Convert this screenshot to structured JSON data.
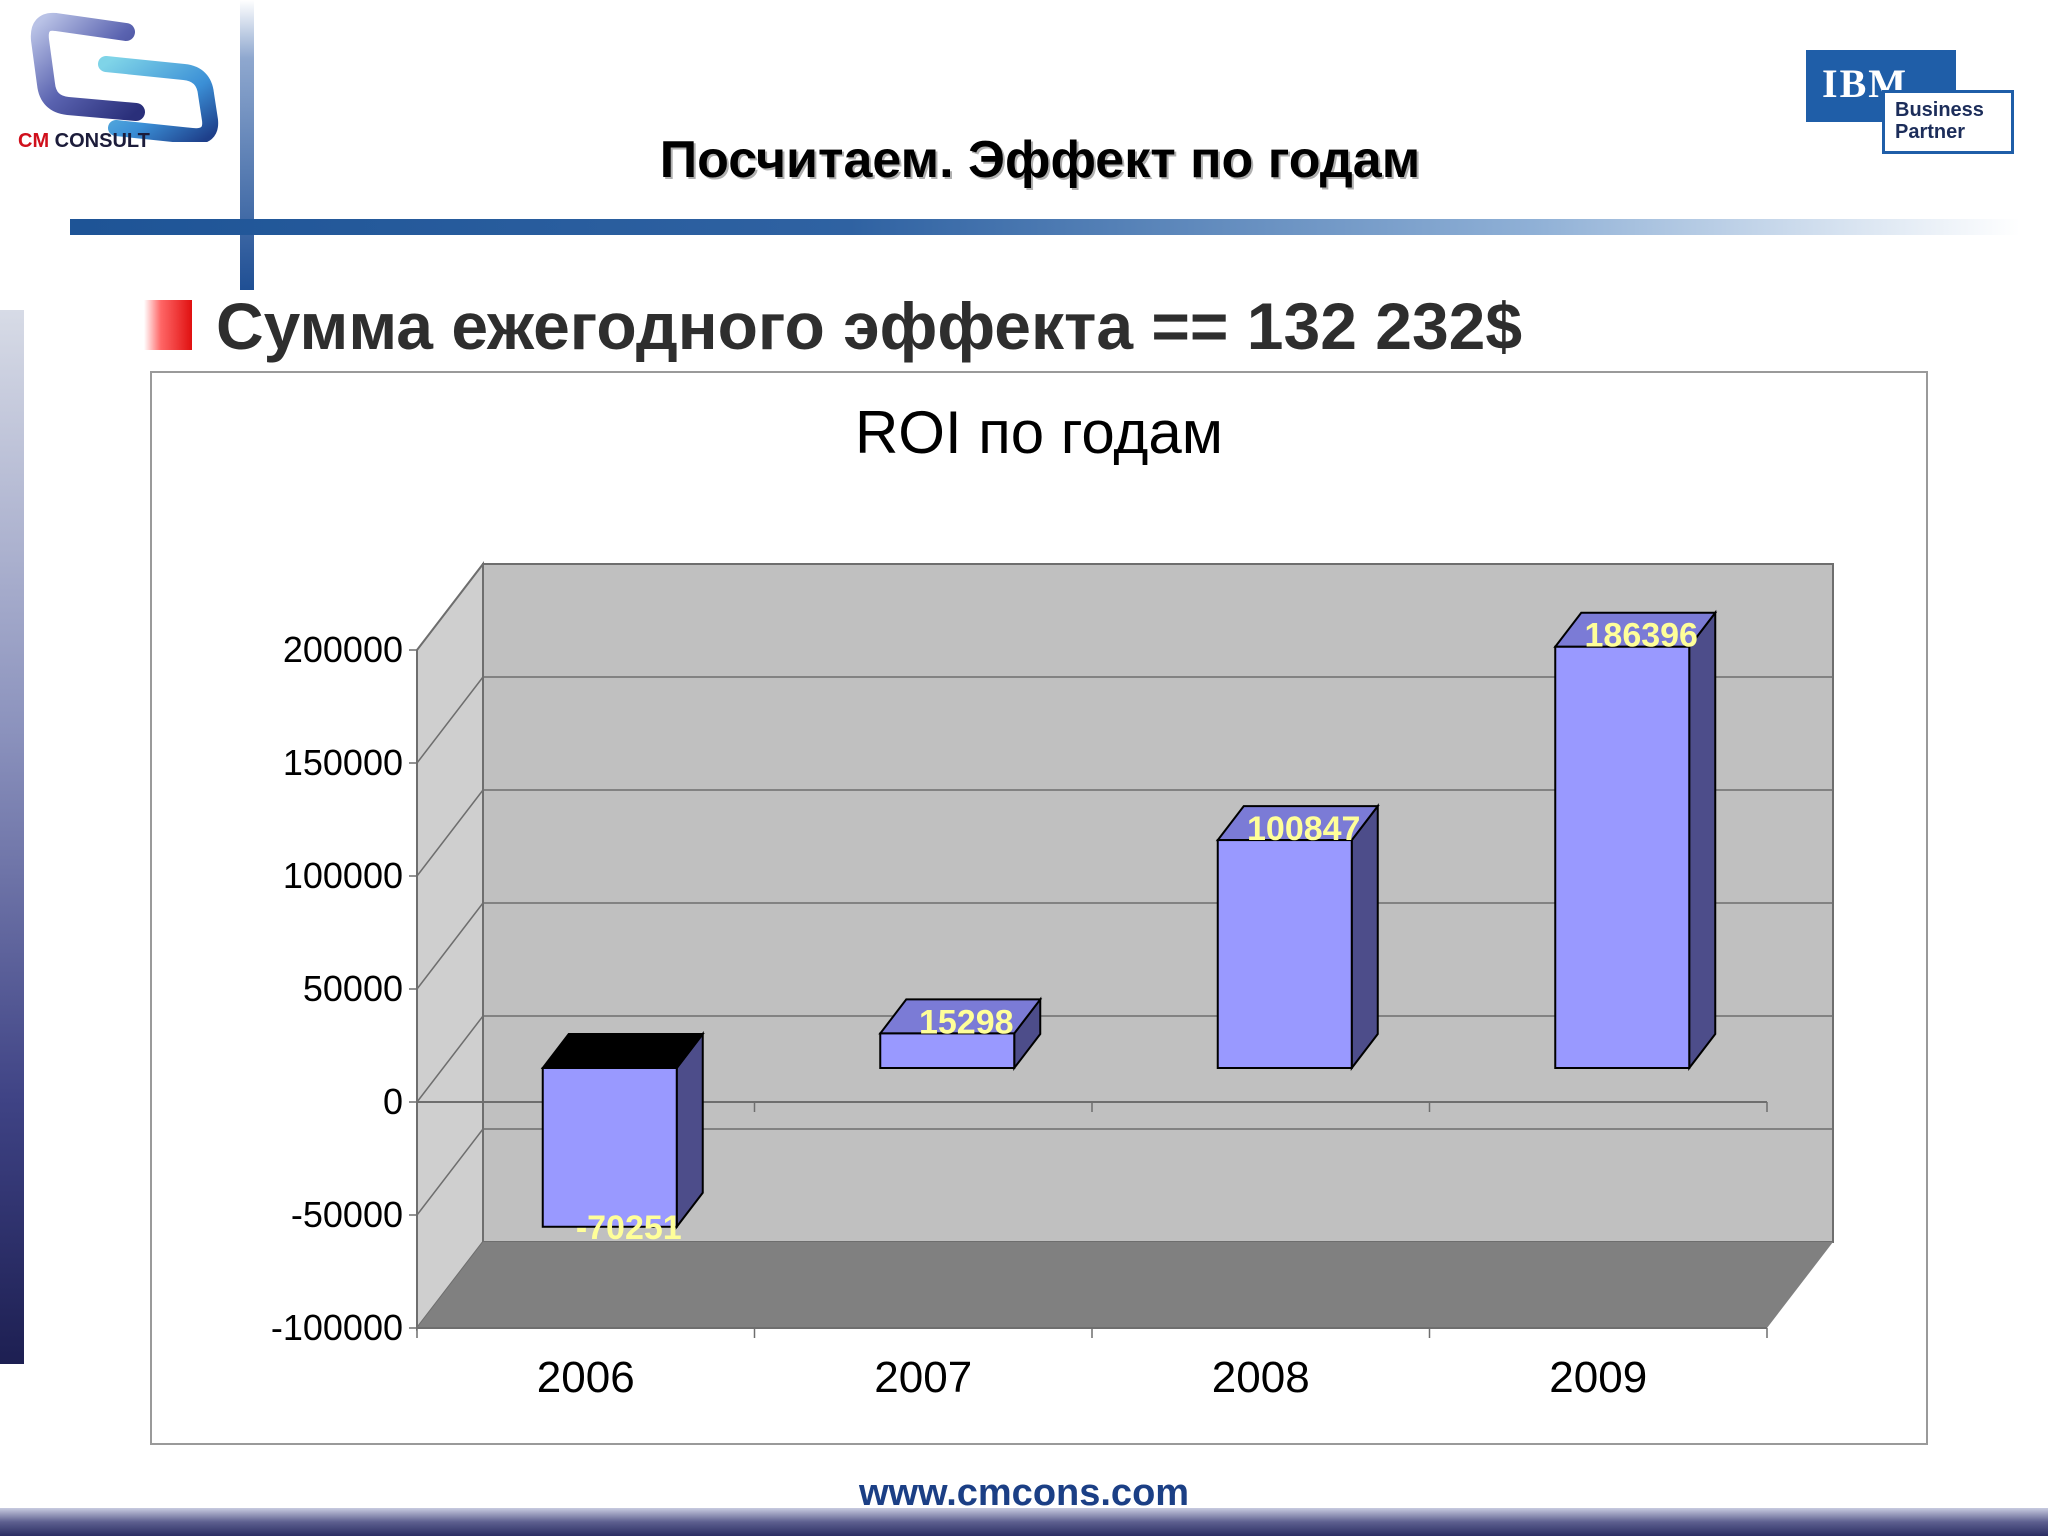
{
  "header": {
    "logo_text_cm": "CM",
    "logo_text_consult": "CONSULT",
    "partner_logo_ibm": "IBM",
    "partner_logo_line1": "Business",
    "partner_logo_line2": "Partner",
    "title": "Посчитаем. Эффект по годам"
  },
  "bullet": {
    "text": "Сумма ежегодного эффекта == 132 232$",
    "icon": "red-gradient-square-bullet"
  },
  "colors": {
    "bar_front": "#9999ff",
    "bar_side": "#4d4d8a",
    "bar_top": "#7b7bd6",
    "negative_bar_top": "#000000",
    "back_wall": "#c0c0c0",
    "floor": "#808080",
    "data_label": "#ffff99",
    "accent_blue": "#1e5496",
    "accent_red": "#d0101c"
  },
  "chart_data": {
    "type": "bar",
    "style": "3d-column",
    "title": "ROI по годам",
    "categories": [
      "2006",
      "2007",
      "2008",
      "2009"
    ],
    "values": [
      -70251,
      15298,
      100847,
      186396
    ],
    "data_labels": [
      "-70251",
      "15298",
      "100847",
      "186396"
    ],
    "ylim": [
      -100000,
      200000
    ],
    "y_ticks": [
      "200000",
      "150000",
      "100000",
      "50000",
      "0",
      "-50000",
      "-100000"
    ],
    "y_tick_values": [
      200000,
      150000,
      100000,
      50000,
      0,
      -50000,
      -100000
    ],
    "grid": true,
    "legend": "none",
    "xlabel": "",
    "ylabel": ""
  },
  "footer": {
    "url": "www.cmcons.com"
  }
}
